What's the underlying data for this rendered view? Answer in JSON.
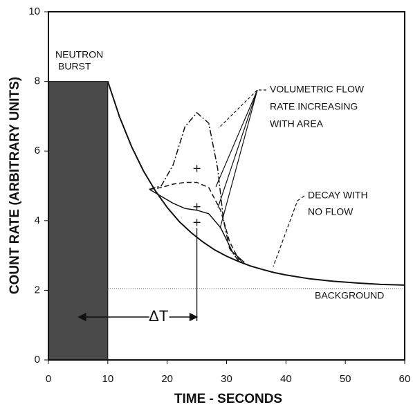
{
  "chart_data": {
    "type": "line",
    "xlabel": "TIME -  SECONDS",
    "ylabel": "COUNT RATE (ARBITRARY UNITS)",
    "xlim": [
      0,
      60
    ],
    "xticks": [
      0,
      10,
      20,
      30,
      40,
      50,
      60
    ],
    "ylim": [
      0,
      10
    ],
    "yticks": [
      0,
      2,
      4,
      6,
      8,
      10
    ],
    "burst": {
      "x": [
        0,
        10
      ],
      "value": 8,
      "color": "#4a4a4a",
      "label": [
        "NEUTRON",
        "BURST"
      ]
    },
    "series": [
      {
        "color": "#111",
        "line_style": "solid",
        "x": [
          10,
          12,
          14,
          16,
          18,
          20,
          22,
          24,
          26,
          28,
          30,
          32,
          34,
          36,
          38,
          40,
          44,
          48,
          52,
          56,
          60
        ],
        "values": [
          8.0,
          6.97,
          6.13,
          5.43,
          4.86,
          4.38,
          3.98,
          3.66,
          3.39,
          3.16,
          2.98,
          2.83,
          2.7,
          2.6,
          2.51,
          2.44,
          2.33,
          2.26,
          2.21,
          2.17,
          2.15
        ]
      },
      {
        "color": "#111",
        "line_style": "dashdot",
        "x": [
          17,
          19,
          21,
          23,
          25,
          27,
          28.5,
          29.5,
          30.5,
          32,
          33
        ],
        "values": [
          4.9,
          5.0,
          5.6,
          6.7,
          7.1,
          6.8,
          5.5,
          4.0,
          3.2,
          2.85,
          2.8
        ]
      },
      {
        "color": "#111",
        "line_style": "dashed",
        "x": [
          17,
          19,
          21,
          23,
          25,
          27,
          29,
          30.5,
          32,
          33
        ],
        "values": [
          4.9,
          4.95,
          5.05,
          5.1,
          5.1,
          4.95,
          4.3,
          3.4,
          2.9,
          2.8
        ]
      },
      {
        "color": "#111",
        "line_style": "solid",
        "x": [
          17,
          19,
          21,
          23,
          25,
          27,
          29,
          31,
          33
        ],
        "values": [
          4.9,
          4.7,
          4.5,
          4.35,
          4.3,
          4.2,
          3.8,
          3.1,
          2.8
        ]
      }
    ],
    "centroids": {
      "x": [
        25,
        25,
        25
      ],
      "values": [
        5.5,
        4.4,
        3.95
      ]
    },
    "background": {
      "value": 2.05,
      "x": [
        10,
        60
      ],
      "label": "BACKGROUND"
    },
    "delta_t": {
      "label": "ΔT",
      "x": [
        10,
        25
      ]
    },
    "annotations": {
      "flow": [
        "VOLUMETRIC FLOW",
        "RATE INCREASING",
        "WITH AREA"
      ],
      "decay": [
        "DECAY WITH",
        "NO FLOW"
      ]
    }
  }
}
